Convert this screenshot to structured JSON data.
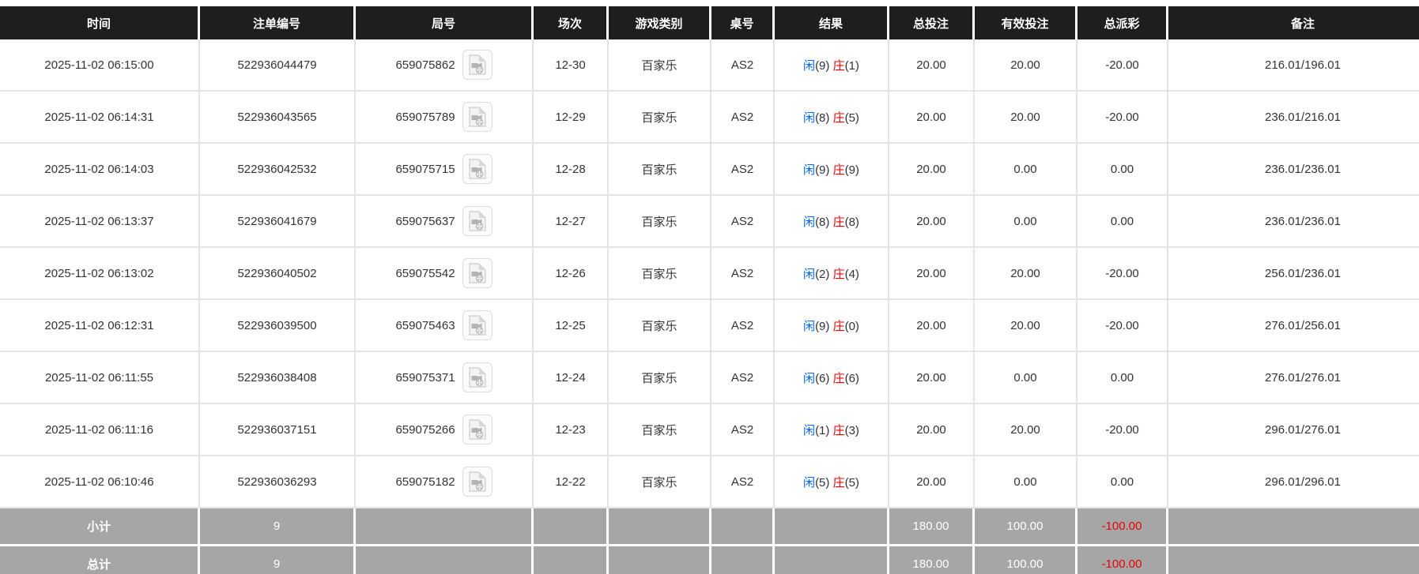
{
  "table": {
    "columns": [
      {
        "key": "time",
        "label": "时间"
      },
      {
        "key": "bet_id",
        "label": "注单编号"
      },
      {
        "key": "round",
        "label": "局号"
      },
      {
        "key": "session",
        "label": "场次"
      },
      {
        "key": "game_type",
        "label": "游戏类别"
      },
      {
        "key": "table_no",
        "label": "桌号"
      },
      {
        "key": "result",
        "label": "结果"
      },
      {
        "key": "total_bet",
        "label": "总投注"
      },
      {
        "key": "valid_bet",
        "label": "有效投注"
      },
      {
        "key": "total_payout",
        "label": "总派彩"
      },
      {
        "key": "remark",
        "label": "备注"
      }
    ],
    "rows": [
      {
        "time": "2025-11-02 06:15:00",
        "bet_id": "522936044479",
        "round": "659075862",
        "session": "12-30",
        "game_type": "百家乐",
        "table_no": "AS2",
        "result": {
          "player_label": "闲",
          "player_points": "(9)",
          "banker_label": "庄",
          "banker_points": "(1)"
        },
        "total_bet": "20.00",
        "valid_bet": "20.00",
        "total_payout": "-20.00",
        "remark": "216.01/196.01"
      },
      {
        "time": "2025-11-02 06:14:31",
        "bet_id": "522936043565",
        "round": "659075789",
        "session": "12-29",
        "game_type": "百家乐",
        "table_no": "AS2",
        "result": {
          "player_label": "闲",
          "player_points": "(8)",
          "banker_label": "庄",
          "banker_points": "(5)"
        },
        "total_bet": "20.00",
        "valid_bet": "20.00",
        "total_payout": "-20.00",
        "remark": "236.01/216.01"
      },
      {
        "time": "2025-11-02 06:14:03",
        "bet_id": "522936042532",
        "round": "659075715",
        "session": "12-28",
        "game_type": "百家乐",
        "table_no": "AS2",
        "result": {
          "player_label": "闲",
          "player_points": "(9)",
          "banker_label": "庄",
          "banker_points": "(9)"
        },
        "total_bet": "20.00",
        "valid_bet": "0.00",
        "total_payout": "0.00",
        "remark": "236.01/236.01"
      },
      {
        "time": "2025-11-02 06:13:37",
        "bet_id": "522936041679",
        "round": "659075637",
        "session": "12-27",
        "game_type": "百家乐",
        "table_no": "AS2",
        "result": {
          "player_label": "闲",
          "player_points": "(8)",
          "banker_label": "庄",
          "banker_points": "(8)"
        },
        "total_bet": "20.00",
        "valid_bet": "0.00",
        "total_payout": "0.00",
        "remark": "236.01/236.01"
      },
      {
        "time": "2025-11-02 06:13:02",
        "bet_id": "522936040502",
        "round": "659075542",
        "session": "12-26",
        "game_type": "百家乐",
        "table_no": "AS2",
        "result": {
          "player_label": "闲",
          "player_points": "(2)",
          "banker_label": "庄",
          "banker_points": "(4)"
        },
        "total_bet": "20.00",
        "valid_bet": "20.00",
        "total_payout": "-20.00",
        "remark": "256.01/236.01"
      },
      {
        "time": "2025-11-02 06:12:31",
        "bet_id": "522936039500",
        "round": "659075463",
        "session": "12-25",
        "game_type": "百家乐",
        "table_no": "AS2",
        "result": {
          "player_label": "闲",
          "player_points": "(9)",
          "banker_label": "庄",
          "banker_points": "(0)"
        },
        "total_bet": "20.00",
        "valid_bet": "20.00",
        "total_payout": "-20.00",
        "remark": "276.01/256.01"
      },
      {
        "time": "2025-11-02 06:11:55",
        "bet_id": "522936038408",
        "round": "659075371",
        "session": "12-24",
        "game_type": "百家乐",
        "table_no": "AS2",
        "result": {
          "player_label": "闲",
          "player_points": "(6)",
          "banker_label": "庄",
          "banker_points": "(6)"
        },
        "total_bet": "20.00",
        "valid_bet": "0.00",
        "total_payout": "0.00",
        "remark": "276.01/276.01"
      },
      {
        "time": "2025-11-02 06:11:16",
        "bet_id": "522936037151",
        "round": "659075266",
        "session": "12-23",
        "game_type": "百家乐",
        "table_no": "AS2",
        "result": {
          "player_label": "闲",
          "player_points": "(1)",
          "banker_label": "庄",
          "banker_points": "(3)"
        },
        "total_bet": "20.00",
        "valid_bet": "20.00",
        "total_payout": "-20.00",
        "remark": "296.01/276.01"
      },
      {
        "time": "2025-11-02 06:10:46",
        "bet_id": "522936036293",
        "round": "659075182",
        "session": "12-22",
        "game_type": "百家乐",
        "table_no": "AS2",
        "result": {
          "player_label": "闲",
          "player_points": "(5)",
          "banker_label": "庄",
          "banker_points": "(5)"
        },
        "total_bet": "20.00",
        "valid_bet": "0.00",
        "total_payout": "0.00",
        "remark": "296.01/296.01"
      }
    ],
    "summary_rows": [
      {
        "key": "subtotal",
        "label": "小计",
        "count": "9",
        "total_bet": "180.00",
        "valid_bet": "100.00",
        "total_payout": "-100.00"
      },
      {
        "key": "total",
        "label": "总计",
        "count": "9",
        "total_bet": "180.00",
        "valid_bet": "100.00",
        "total_payout": "-100.00"
      }
    ],
    "icons": {
      "video_replay": "video-file-icon"
    }
  },
  "colors": {
    "header_bg": "#1e1e1e",
    "header_text": "#ffffff",
    "player_blue": "#0066ff",
    "banker_red": "#ee0000",
    "total_bet_blue": "#0066ff",
    "negative_red": "#ee0000",
    "summary_bg": "#a6a6a6",
    "row_border": "#e4e4e4",
    "body_text": "#333333"
  }
}
